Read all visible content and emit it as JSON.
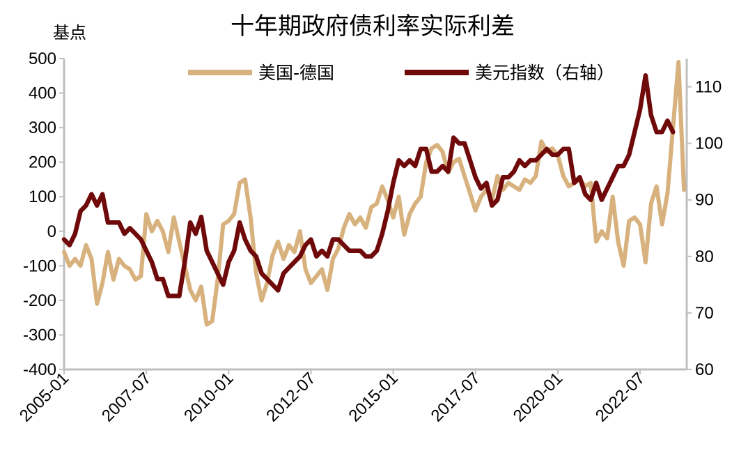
{
  "chart_data": {
    "type": "line",
    "title": "十年期政府债利率实际利差",
    "left_unit": "基点",
    "ylim_left": [
      -400,
      500
    ],
    "yticks_left": [
      "500",
      "400",
      "300",
      "200",
      "100",
      "0",
      "-100",
      "-200",
      "-300",
      "-400"
    ],
    "ylim_right": [
      60,
      115
    ],
    "yticks_right": [
      "110",
      "100",
      "90",
      "80",
      "70",
      "60"
    ],
    "xticks": [
      "2005-01",
      "2007-07",
      "2010-01",
      "2012-07",
      "2015-01",
      "2017-07",
      "2020-01",
      "2022-07"
    ],
    "legend_position": "top",
    "grid": false,
    "series": [
      {
        "name": "美国-德国",
        "axis": "left",
        "color": "#D8B27E",
        "points": [
          [
            "2005-01",
            -60
          ],
          [
            "2005-03",
            -100
          ],
          [
            "2005-05",
            -80
          ],
          [
            "2005-07",
            -100
          ],
          [
            "2005-09",
            -40
          ],
          [
            "2005-11",
            -80
          ],
          [
            "2006-01",
            -210
          ],
          [
            "2006-03",
            -150
          ],
          [
            "2006-05",
            -60
          ],
          [
            "2006-07",
            -140
          ],
          [
            "2006-09",
            -80
          ],
          [
            "2006-11",
            -100
          ],
          [
            "2007-01",
            -110
          ],
          [
            "2007-03",
            -140
          ],
          [
            "2007-05",
            -130
          ],
          [
            "2007-07",
            50
          ],
          [
            "2007-09",
            0
          ],
          [
            "2007-11",
            30
          ],
          [
            "2008-01",
            0
          ],
          [
            "2008-03",
            -60
          ],
          [
            "2008-05",
            40
          ],
          [
            "2008-07",
            -30
          ],
          [
            "2008-09",
            -100
          ],
          [
            "2008-11",
            -170
          ],
          [
            "2009-01",
            -200
          ],
          [
            "2009-03",
            -160
          ],
          [
            "2009-05",
            -270
          ],
          [
            "2009-07",
            -260
          ],
          [
            "2009-09",
            -140
          ],
          [
            "2009-11",
            20
          ],
          [
            "2010-01",
            30
          ],
          [
            "2010-03",
            50
          ],
          [
            "2010-05",
            140
          ],
          [
            "2010-07",
            150
          ],
          [
            "2010-09",
            40
          ],
          [
            "2010-11",
            -120
          ],
          [
            "2011-01",
            -200
          ],
          [
            "2011-03",
            -150
          ],
          [
            "2011-05",
            -70
          ],
          [
            "2011-07",
            -30
          ],
          [
            "2011-09",
            -80
          ],
          [
            "2011-11",
            -40
          ],
          [
            "2012-01",
            -60
          ],
          [
            "2012-03",
            0
          ],
          [
            "2012-05",
            -110
          ],
          [
            "2012-07",
            -150
          ],
          [
            "2012-09",
            -130
          ],
          [
            "2012-11",
            -110
          ],
          [
            "2013-01",
            -170
          ],
          [
            "2013-03",
            -80
          ],
          [
            "2013-05",
            -50
          ],
          [
            "2013-07",
            10
          ],
          [
            "2013-09",
            50
          ],
          [
            "2013-11",
            20
          ],
          [
            "2014-01",
            40
          ],
          [
            "2014-03",
            10
          ],
          [
            "2014-05",
            70
          ],
          [
            "2014-07",
            80
          ],
          [
            "2014-09",
            130
          ],
          [
            "2014-11",
            90
          ],
          [
            "2015-01",
            40
          ],
          [
            "2015-03",
            100
          ],
          [
            "2015-05",
            -10
          ],
          [
            "2015-07",
            50
          ],
          [
            "2015-09",
            80
          ],
          [
            "2015-11",
            100
          ],
          [
            "2016-01",
            200
          ],
          [
            "2016-03",
            240
          ],
          [
            "2016-05",
            250
          ],
          [
            "2016-07",
            230
          ],
          [
            "2016-09",
            170
          ],
          [
            "2016-11",
            200
          ],
          [
            "2017-01",
            210
          ],
          [
            "2017-03",
            160
          ],
          [
            "2017-05",
            110
          ],
          [
            "2017-07",
            60
          ],
          [
            "2017-09",
            100
          ],
          [
            "2017-11",
            120
          ],
          [
            "2018-01",
            90
          ],
          [
            "2018-03",
            160
          ],
          [
            "2018-05",
            120
          ],
          [
            "2018-07",
            140
          ],
          [
            "2018-09",
            130
          ],
          [
            "2018-11",
            120
          ],
          [
            "2019-01",
            150
          ],
          [
            "2019-03",
            140
          ],
          [
            "2019-05",
            160
          ],
          [
            "2019-07",
            260
          ],
          [
            "2019-09",
            230
          ],
          [
            "2019-11",
            240
          ],
          [
            "2020-01",
            220
          ],
          [
            "2020-03",
            160
          ],
          [
            "2020-05",
            130
          ],
          [
            "2020-07",
            140
          ],
          [
            "2020-09",
            150
          ],
          [
            "2020-11",
            130
          ],
          [
            "2021-01",
            140
          ],
          [
            "2021-03",
            -30
          ],
          [
            "2021-05",
            0
          ],
          [
            "2021-07",
            -20
          ],
          [
            "2021-09",
            100
          ],
          [
            "2021-11",
            -30
          ],
          [
            "2022-01",
            -100
          ],
          [
            "2022-03",
            30
          ],
          [
            "2022-05",
            40
          ],
          [
            "2022-07",
            20
          ],
          [
            "2022-09",
            -90
          ],
          [
            "2022-11",
            80
          ],
          [
            "2023-01",
            130
          ],
          [
            "2023-03",
            20
          ],
          [
            "2023-05",
            110
          ],
          [
            "2023-07",
            300
          ],
          [
            "2023-09",
            490
          ],
          [
            "2023-11",
            120
          ]
        ]
      },
      {
        "name": "美元指数（右轴）",
        "axis": "right",
        "color": "#700A0A",
        "points": [
          [
            "2005-01",
            83
          ],
          [
            "2005-03",
            82
          ],
          [
            "2005-05",
            84
          ],
          [
            "2005-07",
            88
          ],
          [
            "2005-09",
            89
          ],
          [
            "2005-11",
            91
          ],
          [
            "2006-01",
            89
          ],
          [
            "2006-03",
            91
          ],
          [
            "2006-05",
            86
          ],
          [
            "2006-07",
            86
          ],
          [
            "2006-09",
            86
          ],
          [
            "2006-11",
            84
          ],
          [
            "2007-01",
            85
          ],
          [
            "2007-03",
            84
          ],
          [
            "2007-05",
            83
          ],
          [
            "2007-07",
            81
          ],
          [
            "2007-09",
            79
          ],
          [
            "2007-11",
            76
          ],
          [
            "2008-01",
            76
          ],
          [
            "2008-03",
            73
          ],
          [
            "2008-05",
            73
          ],
          [
            "2008-07",
            73
          ],
          [
            "2008-09",
            79
          ],
          [
            "2008-11",
            86
          ],
          [
            "2009-01",
            84
          ],
          [
            "2009-03",
            87
          ],
          [
            "2009-05",
            81
          ],
          [
            "2009-07",
            79
          ],
          [
            "2009-09",
            77
          ],
          [
            "2009-11",
            75
          ],
          [
            "2010-01",
            79
          ],
          [
            "2010-03",
            81
          ],
          [
            "2010-05",
            86
          ],
          [
            "2010-07",
            83
          ],
          [
            "2010-09",
            81
          ],
          [
            "2010-11",
            80
          ],
          [
            "2011-01",
            77
          ],
          [
            "2011-03",
            76
          ],
          [
            "2011-05",
            75
          ],
          [
            "2011-07",
            74
          ],
          [
            "2011-09",
            77
          ],
          [
            "2011-11",
            78
          ],
          [
            "2012-01",
            79
          ],
          [
            "2012-03",
            80
          ],
          [
            "2012-05",
            82
          ],
          [
            "2012-07",
            83
          ],
          [
            "2012-09",
            80
          ],
          [
            "2012-11",
            81
          ],
          [
            "2013-01",
            80
          ],
          [
            "2013-03",
            83
          ],
          [
            "2013-05",
            83
          ],
          [
            "2013-07",
            82
          ],
          [
            "2013-09",
            81
          ],
          [
            "2013-11",
            81
          ],
          [
            "2014-01",
            81
          ],
          [
            "2014-03",
            80
          ],
          [
            "2014-05",
            80
          ],
          [
            "2014-07",
            81
          ],
          [
            "2014-09",
            84
          ],
          [
            "2014-11",
            88
          ],
          [
            "2015-01",
            93
          ],
          [
            "2015-03",
            97
          ],
          [
            "2015-05",
            96
          ],
          [
            "2015-07",
            97
          ],
          [
            "2015-09",
            96
          ],
          [
            "2015-11",
            99
          ],
          [
            "2016-01",
            99
          ],
          [
            "2016-03",
            95
          ],
          [
            "2016-05",
            95
          ],
          [
            "2016-07",
            96
          ],
          [
            "2016-09",
            95
          ],
          [
            "2016-11",
            101
          ],
          [
            "2017-01",
            100
          ],
          [
            "2017-03",
            100
          ],
          [
            "2017-05",
            97
          ],
          [
            "2017-07",
            94
          ],
          [
            "2017-09",
            92
          ],
          [
            "2017-11",
            93
          ],
          [
            "2018-01",
            89
          ],
          [
            "2018-03",
            90
          ],
          [
            "2018-05",
            94
          ],
          [
            "2018-07",
            94
          ],
          [
            "2018-09",
            95
          ],
          [
            "2018-11",
            97
          ],
          [
            "2019-01",
            96
          ],
          [
            "2019-03",
            97
          ],
          [
            "2019-05",
            97
          ],
          [
            "2019-07",
            98
          ],
          [
            "2019-09",
            99
          ],
          [
            "2019-11",
            98
          ],
          [
            "2020-01",
            98
          ],
          [
            "2020-03",
            99
          ],
          [
            "2020-05",
            99
          ],
          [
            "2020-07",
            93
          ],
          [
            "2020-09",
            94
          ],
          [
            "2020-11",
            91
          ],
          [
            "2021-01",
            90
          ],
          [
            "2021-03",
            93
          ],
          [
            "2021-05",
            90
          ],
          [
            "2021-07",
            92
          ],
          [
            "2021-09",
            94
          ],
          [
            "2021-11",
            96
          ],
          [
            "2022-01",
            96
          ],
          [
            "2022-03",
            98
          ],
          [
            "2022-05",
            102
          ],
          [
            "2022-07",
            106
          ],
          [
            "2022-09",
            112
          ],
          [
            "2022-11",
            105
          ],
          [
            "2023-01",
            102
          ],
          [
            "2023-03",
            102
          ],
          [
            "2023-05",
            104
          ],
          [
            "2023-07",
            102
          ]
        ]
      }
    ]
  }
}
